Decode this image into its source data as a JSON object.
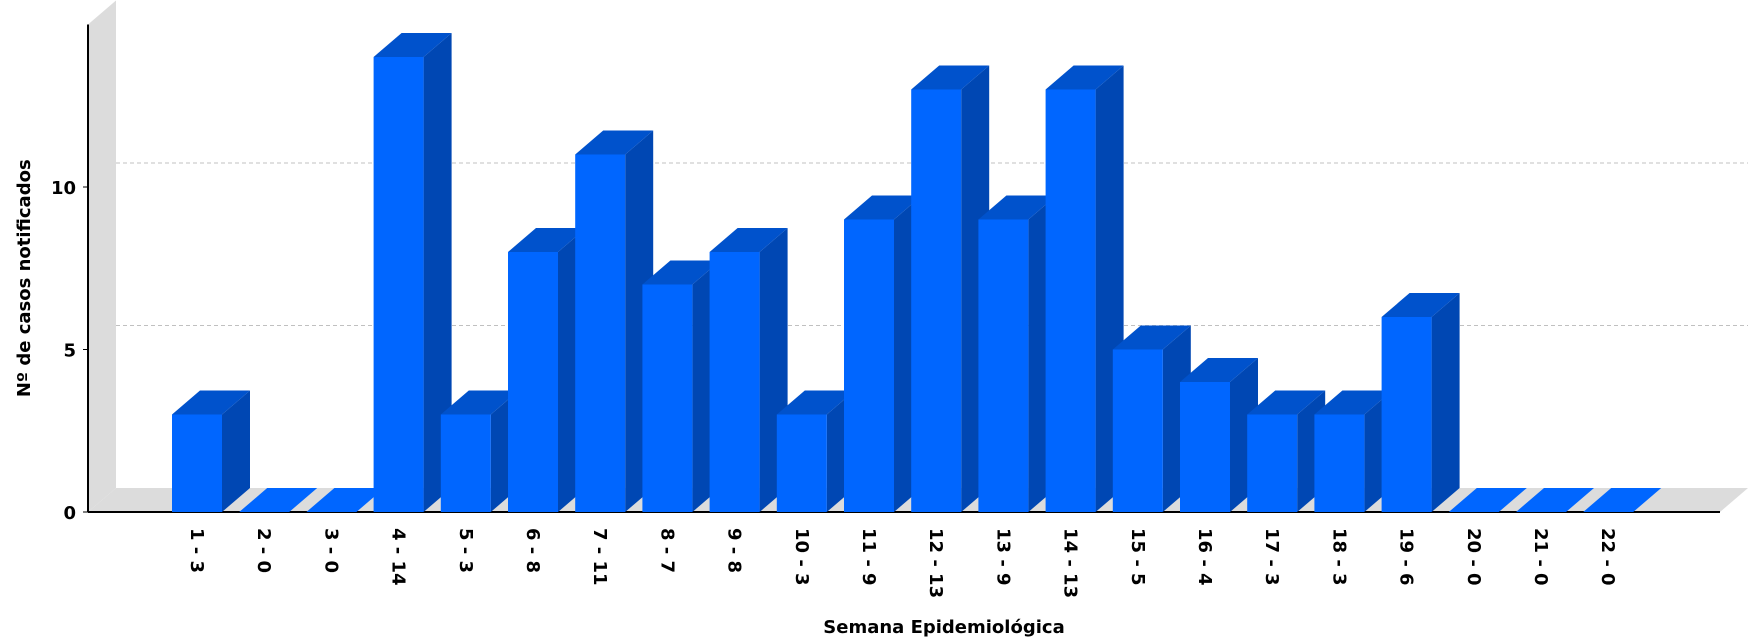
{
  "chart_data": {
    "type": "bar",
    "title": "",
    "xlabel": "Semana Epidemiológica",
    "ylabel": "Nº de casos notificados",
    "categories": [
      "1 - 3",
      "2 - 0",
      "3 - 0",
      "4 - 14",
      "5 - 3",
      "6 - 8",
      "7 - 11",
      "8 - 7",
      "9 - 8",
      "10 - 3",
      "11 - 9",
      "12 - 13",
      "13 - 9",
      "14 - 13",
      "15 - 5",
      "16 - 4",
      "17 - 3",
      "18 - 3",
      "19 - 6",
      "20 - 0",
      "21 - 0",
      "22 - 0"
    ],
    "values": [
      3,
      0,
      0,
      14,
      3,
      8,
      11,
      7,
      8,
      3,
      9,
      13,
      9,
      13,
      5,
      4,
      3,
      3,
      6,
      0,
      0,
      0
    ],
    "ylim": [
      0,
      15
    ],
    "yticks": [
      "0",
      "5",
      "10"
    ],
    "grid": true,
    "style": "3d",
    "colors": {
      "bar_front": "#0066ff",
      "bar_side": "#0047b3",
      "bar_top": "#0052cc",
      "wall": "#dcdcdc",
      "grid": "#c0c0c0"
    }
  }
}
